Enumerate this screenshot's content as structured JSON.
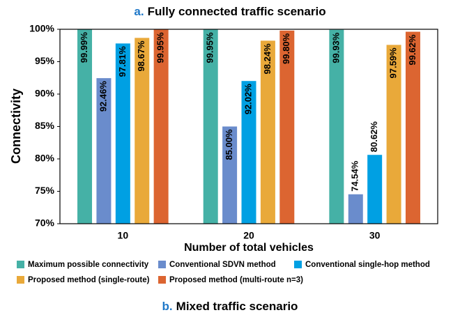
{
  "chart_data": {
    "type": "bar",
    "title_prefix": "a.",
    "title": "Fully connected traffic scenario",
    "xlabel": "Number of total vehicles",
    "ylabel": "Connectivity",
    "categories": [
      "10",
      "20",
      "30"
    ],
    "series": [
      {
        "name": "Maximum possible connectivity",
        "color": "#45b1a6",
        "values": [
          99.99,
          99.95,
          99.93
        ],
        "value_labels": [
          "99.99%",
          "99.95%",
          "99.93%"
        ]
      },
      {
        "name": "Conventional SDVN method",
        "color": "#6a8ccc",
        "values": [
          92.46,
          85.0,
          74.54
        ],
        "value_labels": [
          "92.46%",
          "85.00%",
          "74.54%"
        ]
      },
      {
        "name": "Conventional single-hop method",
        "color": "#00a0e3",
        "values": [
          97.81,
          92.02,
          80.62
        ],
        "value_labels": [
          "97.81%",
          "92.02%",
          "80.62%"
        ]
      },
      {
        "name": "Proposed method (single-route)",
        "color": "#e9a93a",
        "values": [
          98.67,
          98.24,
          97.59
        ],
        "value_labels": [
          "98.67%",
          "98.24%",
          "97.59%"
        ]
      },
      {
        "name": "Proposed method (multi-route n=3)",
        "color": "#dc6531",
        "values": [
          99.95,
          99.8,
          99.62
        ],
        "value_labels": [
          "99.95%",
          "99.80%",
          "99.62%"
        ]
      }
    ],
    "ylim": [
      70,
      100
    ],
    "yticks": [
      {
        "value": 70,
        "label": "70%"
      },
      {
        "value": 75,
        "label": "75%"
      },
      {
        "value": 80,
        "label": "80%"
      },
      {
        "value": 85,
        "label": "85%"
      },
      {
        "value": 90,
        "label": "90%"
      },
      {
        "value": 95,
        "label": "95%"
      },
      {
        "value": 100,
        "label": "100%"
      }
    ],
    "grid": false
  },
  "next_chart": {
    "title_prefix": "b.",
    "title": "Mixed traffic scenario"
  }
}
